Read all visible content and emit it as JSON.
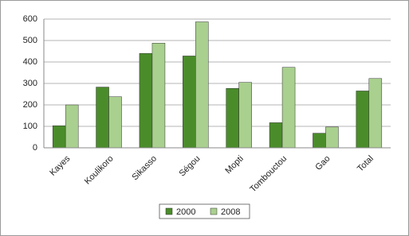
{
  "chart_data": {
    "type": "bar",
    "categories": [
      "Kayes",
      "Koulikoro",
      "Sikasso",
      "Ségou",
      "Mopti",
      "Tombouctou",
      "Gao",
      "Total"
    ],
    "series": [
      {
        "name": "2000",
        "color": "#4a8c2a",
        "values": [
          103,
          283,
          440,
          428,
          277,
          117,
          68,
          265
        ]
      },
      {
        "name": "2008",
        "color": "#a9d08e",
        "values": [
          200,
          238,
          488,
          587,
          305,
          375,
          97,
          323
        ]
      }
    ],
    "ylim": [
      0,
      600
    ],
    "yticks": [
      0,
      100,
      200,
      300,
      400,
      500,
      600
    ],
    "grid": true,
    "legend": "bottom"
  }
}
